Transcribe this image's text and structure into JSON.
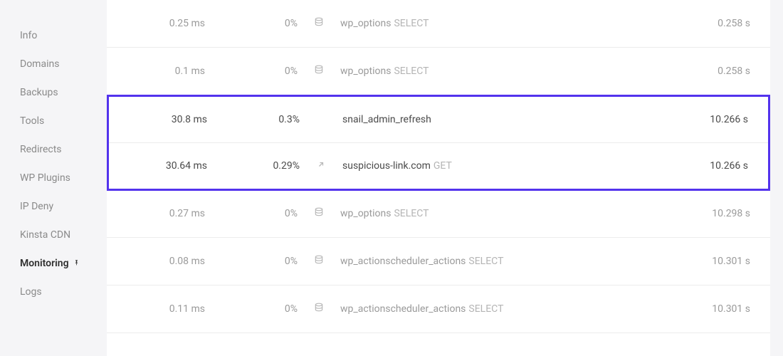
{
  "colors": {
    "highlight_border": "#5333ed"
  },
  "sidebar": {
    "items": [
      {
        "label": "Info",
        "active": false
      },
      {
        "label": "Domains",
        "active": false
      },
      {
        "label": "Backups",
        "active": false
      },
      {
        "label": "Tools",
        "active": false
      },
      {
        "label": "Redirects",
        "active": false
      },
      {
        "label": "WP Plugins",
        "active": false
      },
      {
        "label": "IP Deny",
        "active": false
      },
      {
        "label": "Kinsta CDN",
        "active": false
      },
      {
        "label": "Monitoring",
        "active": true
      },
      {
        "label": "Logs",
        "active": false
      }
    ]
  },
  "rows": [
    {
      "duration": "0.25 ms",
      "percent": "0%",
      "icon": "db",
      "name": "wp_options",
      "method": "SELECT",
      "time": "0.258 s",
      "dark": false
    },
    {
      "duration": "0.1 ms",
      "percent": "0%",
      "icon": "db",
      "name": "wp_options",
      "method": "SELECT",
      "time": "0.258 s",
      "dark": false
    },
    {
      "duration": "30.8 ms",
      "percent": "0.3%",
      "icon": "",
      "name": "snail_admin_refresh",
      "method": "",
      "time": "10.266 s",
      "dark": true
    },
    {
      "duration": "30.64 ms",
      "percent": "0.29%",
      "icon": "ext",
      "name": "suspicious-link.com",
      "method": "GET",
      "time": "10.266 s",
      "dark": true
    },
    {
      "duration": "0.27 ms",
      "percent": "0%",
      "icon": "db",
      "name": "wp_options",
      "method": "SELECT",
      "time": "10.298 s",
      "dark": false
    },
    {
      "duration": "0.08 ms",
      "percent": "0%",
      "icon": "db",
      "name": "wp_actionscheduler_actions",
      "method": "SELECT",
      "time": "10.301 s",
      "dark": false
    },
    {
      "duration": "0.11 ms",
      "percent": "0%",
      "icon": "db",
      "name": "wp_actionscheduler_actions",
      "method": "SELECT",
      "time": "10.301 s",
      "dark": false
    }
  ],
  "highlight": {
    "start": 2,
    "end": 3
  }
}
